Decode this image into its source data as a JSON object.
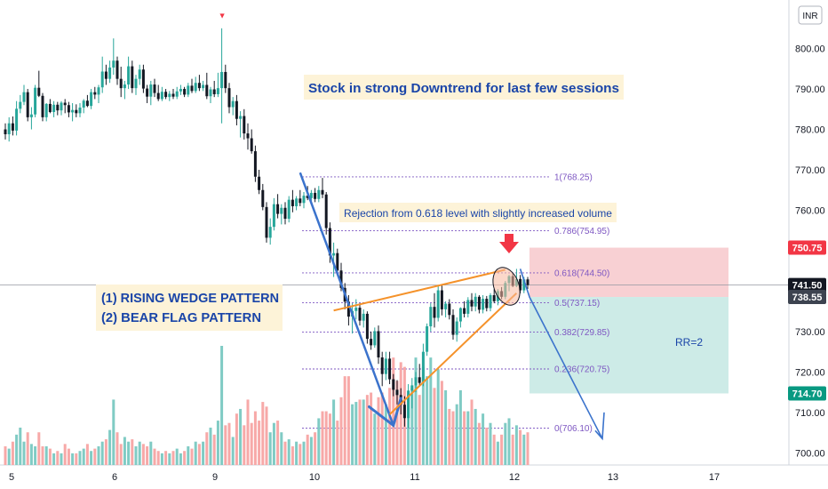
{
  "currency_label": "INR",
  "colors": {
    "up": "#26a69a",
    "down": "#131722",
    "vol_up": "#80cbc4",
    "vol_down": "#f7a9a8",
    "fib": "#7e57c2",
    "trend_blue": "#3b73cc",
    "wedge_orange": "#f5922a",
    "loss_zone": "#f8d0d3",
    "profit_zone": "#cdebe7",
    "tag_red": "#f23645",
    "tag_dark": "#3d4350",
    "tag_green": "#089981",
    "callout_bg": "#fdf3d8",
    "callout_text": "#1a45a8"
  },
  "annotations": {
    "headline": "Stock in strong Downtrend for last few sessions",
    "rejection_note": "Rejection from 0.618 level with slightly increased volume",
    "pattern_line1": "(1) RISING WEDGE PATTERN",
    "pattern_line2": "(2) BEAR FLAG PATTERN",
    "rr_label": "RR=2"
  },
  "price_tags": {
    "stop_loss": "750.75",
    "last_price": "741.50",
    "entry": "738.55",
    "target": "714.70"
  },
  "chart_data": {
    "type": "candlestick",
    "y_axis": {
      "range": [
        697,
        812
      ],
      "ticks": [
        "700.00",
        "710.00",
        "720.00",
        "730.00",
        "740.00",
        "750.00",
        "760.00",
        "770.00",
        "780.00",
        "790.00",
        "800.00"
      ],
      "tick_values": [
        700,
        710,
        720,
        730,
        740,
        750,
        760,
        770,
        780,
        790,
        800
      ]
    },
    "x_axis": {
      "ticks": [
        "5",
        "6",
        "9",
        "10",
        "11",
        "12",
        "13",
        "17"
      ],
      "tick_bar_index": [
        4,
        30,
        58,
        86,
        114,
        142,
        170,
        198
      ]
    },
    "fib_levels": [
      {
        "ratio": 1,
        "price": 768.25,
        "label": "1(768.25)"
      },
      {
        "ratio": 0.786,
        "price": 754.95,
        "label": "0.786(754.95)"
      },
      {
        "ratio": 0.618,
        "price": 744.5,
        "label": "0.618(744.50)"
      },
      {
        "ratio": 0.5,
        "price": 737.15,
        "label": "0.5(737.15)"
      },
      {
        "ratio": 0.382,
        "price": 729.85,
        "label": "0.382(729.85)"
      },
      {
        "ratio": 0.236,
        "price": 720.75,
        "label": "0.236(720.75)"
      },
      {
        "ratio": 0,
        "price": 706.1,
        "label": "0(706.10)"
      }
    ],
    "trade_setup": {
      "stop_loss": 750.75,
      "entry": 738.55,
      "target": 714.7,
      "last_price": 741.5,
      "reward_to_risk": 2
    },
    "candles": [
      {
        "o": 780.0,
        "h": 781.5,
        "l": 777.5,
        "c": 778.8,
        "v": 0.8
      },
      {
        "o": 778.8,
        "h": 783.0,
        "l": 777.0,
        "c": 781.5,
        "v": 0.7
      },
      {
        "o": 781.5,
        "h": 783.2,
        "l": 778.5,
        "c": 779.7,
        "v": 1.0
      },
      {
        "o": 779.7,
        "h": 787.0,
        "l": 778.5,
        "c": 785.1,
        "v": 1.3
      },
      {
        "o": 785.1,
        "h": 788.5,
        "l": 784.0,
        "c": 786.8,
        "v": 1.6
      },
      {
        "o": 786.8,
        "h": 791.0,
        "l": 786.0,
        "c": 789.2,
        "v": 1.0
      },
      {
        "o": 789.2,
        "h": 790.0,
        "l": 782.0,
        "c": 783.0,
        "v": 1.4
      },
      {
        "o": 783.0,
        "h": 785.5,
        "l": 780.0,
        "c": 783.7,
        "v": 0.9
      },
      {
        "o": 783.7,
        "h": 791.0,
        "l": 783.0,
        "c": 790.3,
        "v": 0.8
      },
      {
        "o": 790.3,
        "h": 794.5,
        "l": 788.0,
        "c": 788.3,
        "v": 1.4
      },
      {
        "o": 788.3,
        "h": 789.0,
        "l": 782.0,
        "c": 783.0,
        "v": 0.8
      },
      {
        "o": 783.0,
        "h": 786.5,
        "l": 782.0,
        "c": 786.3,
        "v": 0.8
      },
      {
        "o": 786.3,
        "h": 787.5,
        "l": 784.0,
        "c": 784.3,
        "v": 0.7
      },
      {
        "o": 784.3,
        "h": 787.0,
        "l": 783.0,
        "c": 786.1,
        "v": 0.5
      },
      {
        "o": 786.1,
        "h": 786.8,
        "l": 783.5,
        "c": 784.7,
        "v": 0.6
      },
      {
        "o": 784.7,
        "h": 787.0,
        "l": 783.5,
        "c": 786.6,
        "v": 0.5
      },
      {
        "o": 786.6,
        "h": 787.5,
        "l": 784.0,
        "c": 786.0,
        "v": 0.9
      },
      {
        "o": 786.0,
        "h": 786.8,
        "l": 783.0,
        "c": 784.2,
        "v": 0.7
      },
      {
        "o": 784.2,
        "h": 786.5,
        "l": 782.0,
        "c": 784.8,
        "v": 0.5
      },
      {
        "o": 784.8,
        "h": 786.2,
        "l": 783.0,
        "c": 784.0,
        "v": 0.5
      },
      {
        "o": 784.0,
        "h": 786.5,
        "l": 783.0,
        "c": 785.4,
        "v": 0.6
      },
      {
        "o": 785.4,
        "h": 787.5,
        "l": 784.0,
        "c": 787.1,
        "v": 0.7
      },
      {
        "o": 787.1,
        "h": 788.5,
        "l": 785.5,
        "c": 785.8,
        "v": 0.9
      },
      {
        "o": 785.8,
        "h": 790.0,
        "l": 785.0,
        "c": 789.2,
        "v": 0.6
      },
      {
        "o": 789.2,
        "h": 790.5,
        "l": 787.5,
        "c": 788.6,
        "v": 0.7
      },
      {
        "o": 788.6,
        "h": 791.0,
        "l": 786.5,
        "c": 790.4,
        "v": 0.8
      },
      {
        "o": 790.4,
        "h": 798.0,
        "l": 789.0,
        "c": 794.3,
        "v": 1.0
      },
      {
        "o": 794.3,
        "h": 796.0,
        "l": 791.0,
        "c": 792.5,
        "v": 1.1
      },
      {
        "o": 792.5,
        "h": 797.0,
        "l": 791.5,
        "c": 795.3,
        "v": 1.5
      },
      {
        "o": 795.3,
        "h": 802.5,
        "l": 793.5,
        "c": 797.0,
        "v": 2.8
      },
      {
        "o": 797.0,
        "h": 798.0,
        "l": 791.0,
        "c": 792.5,
        "v": 1.4
      },
      {
        "o": 792.5,
        "h": 795.5,
        "l": 788.0,
        "c": 790.2,
        "v": 0.9
      },
      {
        "o": 790.2,
        "h": 792.0,
        "l": 787.5,
        "c": 791.1,
        "v": 1.2
      },
      {
        "o": 791.1,
        "h": 798.0,
        "l": 790.0,
        "c": 795.6,
        "v": 1.0
      },
      {
        "o": 795.6,
        "h": 797.0,
        "l": 789.0,
        "c": 790.2,
        "v": 1.1
      },
      {
        "o": 790.2,
        "h": 793.5,
        "l": 788.5,
        "c": 792.5,
        "v": 0.8
      },
      {
        "o": 792.5,
        "h": 796.0,
        "l": 791.0,
        "c": 794.8,
        "v": 1.0
      },
      {
        "o": 794.8,
        "h": 796.0,
        "l": 789.0,
        "c": 790.1,
        "v": 0.9
      },
      {
        "o": 790.1,
        "h": 791.0,
        "l": 786.5,
        "c": 788.1,
        "v": 0.8
      },
      {
        "o": 788.1,
        "h": 792.0,
        "l": 786.0,
        "c": 791.1,
        "v": 1.0
      },
      {
        "o": 791.1,
        "h": 792.5,
        "l": 788.0,
        "c": 789.0,
        "v": 0.7
      },
      {
        "o": 789.0,
        "h": 791.0,
        "l": 787.0,
        "c": 787.5,
        "v": 0.6
      },
      {
        "o": 787.5,
        "h": 790.5,
        "l": 787.0,
        "c": 789.3,
        "v": 0.5
      },
      {
        "o": 789.3,
        "h": 790.0,
        "l": 787.5,
        "c": 788.0,
        "v": 0.6
      },
      {
        "o": 788.0,
        "h": 789.5,
        "l": 787.0,
        "c": 788.8,
        "v": 0.5
      },
      {
        "o": 788.8,
        "h": 790.0,
        "l": 787.5,
        "c": 788.1,
        "v": 0.6
      },
      {
        "o": 788.1,
        "h": 790.5,
        "l": 787.5,
        "c": 789.4,
        "v": 0.7
      },
      {
        "o": 789.4,
        "h": 791.0,
        "l": 788.5,
        "c": 790.0,
        "v": 0.5
      },
      {
        "o": 790.0,
        "h": 790.5,
        "l": 788.0,
        "c": 788.6,
        "v": 0.6
      },
      {
        "o": 788.6,
        "h": 791.5,
        "l": 788.0,
        "c": 790.8,
        "v": 0.8
      },
      {
        "o": 790.8,
        "h": 792.5,
        "l": 789.0,
        "c": 789.5,
        "v": 0.7
      },
      {
        "o": 789.5,
        "h": 793.0,
        "l": 789.0,
        "c": 791.5,
        "v": 1.0
      },
      {
        "o": 791.5,
        "h": 793.5,
        "l": 789.5,
        "c": 790.2,
        "v": 0.9
      },
      {
        "o": 790.2,
        "h": 792.0,
        "l": 789.5,
        "c": 791.0,
        "v": 1.0
      },
      {
        "o": 791.0,
        "h": 794.0,
        "l": 787.5,
        "c": 788.2,
        "v": 1.4
      },
      {
        "o": 788.2,
        "h": 790.5,
        "l": 786.5,
        "c": 789.9,
        "v": 1.6
      },
      {
        "o": 789.9,
        "h": 792.0,
        "l": 788.0,
        "c": 788.7,
        "v": 1.3
      },
      {
        "o": 788.7,
        "h": 794.0,
        "l": 788.0,
        "c": 790.2,
        "v": 1.9
      },
      {
        "o": 790.2,
        "h": 805.0,
        "l": 781.5,
        "c": 794.2,
        "v": 5.1
      },
      {
        "o": 794.2,
        "h": 796.0,
        "l": 789.0,
        "c": 790.2,
        "v": 1.7
      },
      {
        "o": 790.2,
        "h": 791.5,
        "l": 784.0,
        "c": 785.5,
        "v": 1.8
      },
      {
        "o": 785.5,
        "h": 788.0,
        "l": 783.5,
        "c": 787.0,
        "v": 1.2
      },
      {
        "o": 787.0,
        "h": 788.5,
        "l": 781.0,
        "c": 782.6,
        "v": 2.2
      },
      {
        "o": 782.6,
        "h": 784.5,
        "l": 778.0,
        "c": 783.3,
        "v": 2.4
      },
      {
        "o": 783.3,
        "h": 785.0,
        "l": 777.5,
        "c": 779.0,
        "v": 1.7
      },
      {
        "o": 779.0,
        "h": 781.5,
        "l": 775.0,
        "c": 777.8,
        "v": 2.8
      },
      {
        "o": 777.8,
        "h": 780.0,
        "l": 774.0,
        "c": 774.6,
        "v": 1.8
      },
      {
        "o": 774.6,
        "h": 776.0,
        "l": 767.0,
        "c": 768.3,
        "v": 2.3
      },
      {
        "o": 768.3,
        "h": 770.0,
        "l": 764.0,
        "c": 765.0,
        "v": 1.9
      },
      {
        "o": 765.0,
        "h": 766.5,
        "l": 760.0,
        "c": 760.8,
        "v": 2.7
      },
      {
        "o": 760.8,
        "h": 762.0,
        "l": 752.0,
        "c": 753.2,
        "v": 2.5
      },
      {
        "o": 753.2,
        "h": 758.0,
        "l": 751.5,
        "c": 755.9,
        "v": 1.4
      },
      {
        "o": 755.9,
        "h": 763.0,
        "l": 755.0,
        "c": 761.5,
        "v": 1.8
      },
      {
        "o": 761.5,
        "h": 764.0,
        "l": 758.0,
        "c": 759.1,
        "v": 1.9
      },
      {
        "o": 759.1,
        "h": 761.5,
        "l": 756.5,
        "c": 760.6,
        "v": 1.4
      },
      {
        "o": 760.6,
        "h": 762.0,
        "l": 756.5,
        "c": 757.9,
        "v": 1.0
      },
      {
        "o": 757.9,
        "h": 763.5,
        "l": 757.0,
        "c": 762.6,
        "v": 1.1
      },
      {
        "o": 762.6,
        "h": 765.0,
        "l": 759.5,
        "c": 761.0,
        "v": 0.8
      },
      {
        "o": 761.0,
        "h": 763.5,
        "l": 760.0,
        "c": 762.9,
        "v": 1.0
      },
      {
        "o": 762.9,
        "h": 765.0,
        "l": 761.0,
        "c": 761.8,
        "v": 0.9
      },
      {
        "o": 761.8,
        "h": 764.5,
        "l": 760.5,
        "c": 763.6,
        "v": 1.0
      },
      {
        "o": 763.6,
        "h": 766.0,
        "l": 762.5,
        "c": 763.0,
        "v": 1.3
      },
      {
        "o": 763.0,
        "h": 765.0,
        "l": 761.5,
        "c": 764.3,
        "v": 1.2
      },
      {
        "o": 764.3,
        "h": 765.5,
        "l": 762.0,
        "c": 762.8,
        "v": 1.4
      },
      {
        "o": 762.8,
        "h": 766.0,
        "l": 762.0,
        "c": 765.0,
        "v": 2.0
      },
      {
        "o": 765.0,
        "h": 768.0,
        "l": 763.0,
        "c": 763.9,
        "v": 2.3
      },
      {
        "o": 763.9,
        "h": 764.5,
        "l": 754.0,
        "c": 755.6,
        "v": 2.3
      },
      {
        "o": 755.6,
        "h": 757.0,
        "l": 747.0,
        "c": 748.8,
        "v": 2.2
      },
      {
        "o": 748.8,
        "h": 752.0,
        "l": 743.5,
        "c": 749.4,
        "v": 2.8
      },
      {
        "o": 749.4,
        "h": 750.5,
        "l": 744.0,
        "c": 745.1,
        "v": 1.9
      },
      {
        "o": 745.1,
        "h": 747.0,
        "l": 740.0,
        "c": 740.8,
        "v": 2.9
      },
      {
        "o": 740.8,
        "h": 742.0,
        "l": 735.5,
        "c": 737.4,
        "v": 3.8
      },
      {
        "o": 737.4,
        "h": 739.0,
        "l": 731.5,
        "c": 733.7,
        "v": 3.8
      },
      {
        "o": 733.7,
        "h": 737.0,
        "l": 729.5,
        "c": 735.1,
        "v": 2.6
      },
      {
        "o": 735.1,
        "h": 738.0,
        "l": 733.0,
        "c": 735.9,
        "v": 2.7
      },
      {
        "o": 735.9,
        "h": 737.0,
        "l": 731.5,
        "c": 732.7,
        "v": 2.8
      },
      {
        "o": 732.7,
        "h": 735.5,
        "l": 731.0,
        "c": 734.4,
        "v": 2.8
      },
      {
        "o": 734.4,
        "h": 735.0,
        "l": 727.0,
        "c": 728.2,
        "v": 3.0
      },
      {
        "o": 728.2,
        "h": 730.0,
        "l": 725.5,
        "c": 726.6,
        "v": 3.1
      },
      {
        "o": 726.6,
        "h": 731.0,
        "l": 726.0,
        "c": 730.1,
        "v": 2.2
      },
      {
        "o": 730.1,
        "h": 731.5,
        "l": 722.0,
        "c": 723.6,
        "v": 2.9
      },
      {
        "o": 723.6,
        "h": 725.0,
        "l": 716.5,
        "c": 719.5,
        "v": 3.1
      },
      {
        "o": 719.5,
        "h": 725.0,
        "l": 718.0,
        "c": 723.3,
        "v": 2.6
      },
      {
        "o": 723.3,
        "h": 725.0,
        "l": 717.0,
        "c": 718.2,
        "v": 3.3
      },
      {
        "o": 718.2,
        "h": 719.5,
        "l": 714.0,
        "c": 715.6,
        "v": 4.6
      },
      {
        "o": 715.6,
        "h": 718.0,
        "l": 712.0,
        "c": 714.3,
        "v": 3.6
      },
      {
        "o": 714.3,
        "h": 716.0,
        "l": 709.5,
        "c": 711.9,
        "v": 4.4
      },
      {
        "o": 711.9,
        "h": 714.0,
        "l": 706.5,
        "c": 708.6,
        "v": 4.2
      },
      {
        "o": 708.6,
        "h": 717.0,
        "l": 706.1,
        "c": 715.4,
        "v": 3.0
      },
      {
        "o": 715.4,
        "h": 718.5,
        "l": 711.0,
        "c": 716.7,
        "v": 3.3
      },
      {
        "o": 716.7,
        "h": 720.0,
        "l": 715.0,
        "c": 718.7,
        "v": 4.6
      },
      {
        "o": 718.7,
        "h": 722.0,
        "l": 716.5,
        "c": 717.3,
        "v": 3.0
      },
      {
        "o": 717.3,
        "h": 727.0,
        "l": 716.5,
        "c": 725.0,
        "v": 4.2
      },
      {
        "o": 725.0,
        "h": 732.0,
        "l": 724.0,
        "c": 731.3,
        "v": 3.8
      },
      {
        "o": 731.3,
        "h": 737.0,
        "l": 730.0,
        "c": 736.1,
        "v": 4.6
      },
      {
        "o": 736.1,
        "h": 739.5,
        "l": 731.0,
        "c": 733.4,
        "v": 3.3
      },
      {
        "o": 733.4,
        "h": 741.5,
        "l": 732.5,
        "c": 740.2,
        "v": 4.1
      },
      {
        "o": 740.2,
        "h": 741.5,
        "l": 734.0,
        "c": 735.5,
        "v": 3.6
      },
      {
        "o": 735.5,
        "h": 737.5,
        "l": 733.5,
        "c": 736.9,
        "v": 3.2
      },
      {
        "o": 736.9,
        "h": 738.0,
        "l": 733.0,
        "c": 734.1,
        "v": 2.4
      },
      {
        "o": 734.1,
        "h": 735.5,
        "l": 728.0,
        "c": 729.2,
        "v": 2.3
      },
      {
        "o": 729.2,
        "h": 733.5,
        "l": 727.5,
        "c": 732.5,
        "v": 2.6
      },
      {
        "o": 732.5,
        "h": 736.0,
        "l": 731.0,
        "c": 735.8,
        "v": 3.2
      },
      {
        "o": 735.8,
        "h": 737.5,
        "l": 733.5,
        "c": 734.4,
        "v": 2.3
      },
      {
        "o": 734.4,
        "h": 738.5,
        "l": 733.5,
        "c": 737.8,
        "v": 2.3
      },
      {
        "o": 737.8,
        "h": 739.5,
        "l": 735.0,
        "c": 736.2,
        "v": 2.8
      },
      {
        "o": 736.2,
        "h": 739.5,
        "l": 735.0,
        "c": 738.6,
        "v": 2.4
      },
      {
        "o": 738.6,
        "h": 739.0,
        "l": 734.5,
        "c": 735.4,
        "v": 1.8
      },
      {
        "o": 735.4,
        "h": 739.0,
        "l": 734.5,
        "c": 738.1,
        "v": 2.2
      },
      {
        "o": 738.1,
        "h": 738.8,
        "l": 735.0,
        "c": 735.8,
        "v": 1.6
      },
      {
        "o": 735.8,
        "h": 739.5,
        "l": 735.0,
        "c": 739.0,
        "v": 1.8
      },
      {
        "o": 739.0,
        "h": 740.5,
        "l": 737.0,
        "c": 737.5,
        "v": 1.3
      },
      {
        "o": 737.5,
        "h": 740.5,
        "l": 736.5,
        "c": 740.0,
        "v": 1.0
      },
      {
        "o": 740.0,
        "h": 741.0,
        "l": 738.0,
        "c": 738.6,
        "v": 1.3
      },
      {
        "o": 738.6,
        "h": 742.5,
        "l": 738.0,
        "c": 742.0,
        "v": 1.8
      },
      {
        "o": 742.0,
        "h": 744.0,
        "l": 740.0,
        "c": 743.7,
        "v": 2.0
      },
      {
        "o": 743.7,
        "h": 744.5,
        "l": 741.0,
        "c": 741.3,
        "v": 1.3
      },
      {
        "o": 741.3,
        "h": 745.5,
        "l": 741.0,
        "c": 743.0,
        "v": 1.7
      },
      {
        "o": 743.0,
        "h": 744.0,
        "l": 739.5,
        "c": 740.2,
        "v": 1.5
      },
      {
        "o": 740.2,
        "h": 743.5,
        "l": 739.5,
        "c": 742.9,
        "v": 1.3
      },
      {
        "o": 742.9,
        "h": 743.5,
        "l": 740.5,
        "c": 741.5,
        "v": 1.4
      }
    ]
  }
}
